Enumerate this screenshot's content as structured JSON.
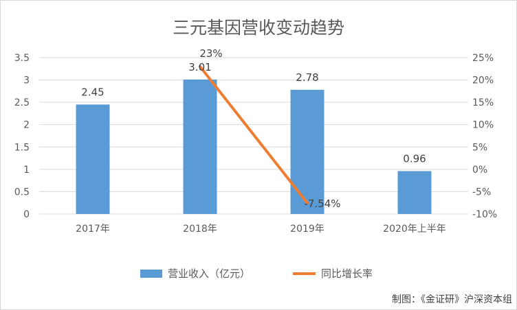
{
  "chart_data": {
    "type": "bar",
    "title": "三元基因营收变动趋势",
    "categories": [
      "2017年",
      "2018年",
      "2019年",
      "2020年上半年"
    ],
    "series": [
      {
        "name": "营业收入（亿元）",
        "type": "bar",
        "axis": "left",
        "color": "#5B9BD5",
        "values": [
          2.45,
          3.01,
          2.78,
          0.96
        ],
        "labels": [
          "2.45",
          "3.01",
          "2.78",
          "0.96"
        ]
      },
      {
        "name": "同比增长率",
        "type": "line",
        "axis": "right",
        "color": "#ED7D31",
        "values": [
          null,
          23,
          -7.54,
          null
        ],
        "labels": [
          null,
          "23%",
          "-7.54%",
          null
        ]
      }
    ],
    "y_left": {
      "min": 0,
      "max": 3.5,
      "ticks": [
        "0",
        "0.5",
        "1",
        "1.5",
        "2",
        "2.5",
        "3",
        "3.5"
      ]
    },
    "y_right": {
      "min": -10,
      "max": 25,
      "ticks": [
        "-10%",
        "-5%",
        "0%",
        "5%",
        "10%",
        "15%",
        "20%",
        "25%"
      ]
    },
    "grid": true,
    "legend": "bottom"
  },
  "credit": "制图：《金证研》沪深资本组"
}
